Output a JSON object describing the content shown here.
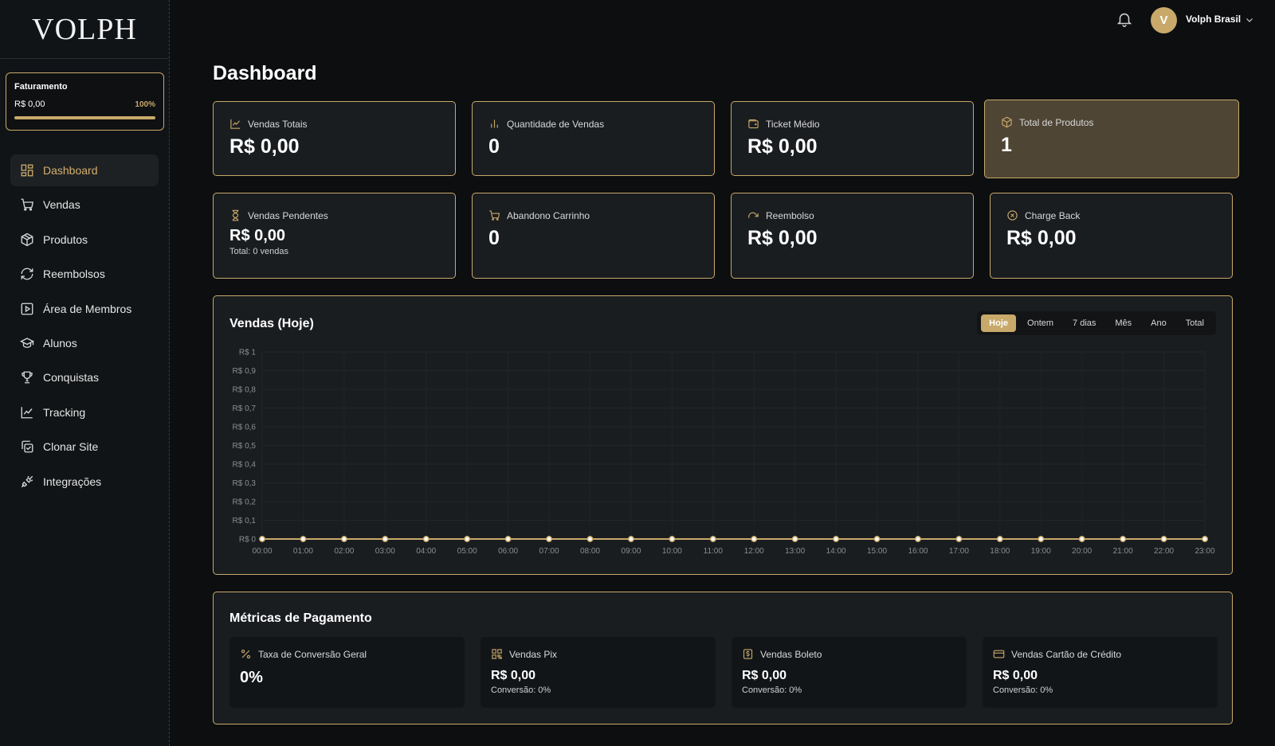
{
  "brand": {
    "logo": "VOLPH"
  },
  "billing": {
    "title": "Faturamento",
    "value": "R$ 0,00",
    "percent_label": "100%",
    "progress": 1.0
  },
  "sidebar": {
    "items": [
      {
        "label": "Dashboard",
        "icon": "dashboard-icon",
        "active": true
      },
      {
        "label": "Vendas",
        "icon": "cart-icon"
      },
      {
        "label": "Produtos",
        "icon": "box-icon"
      },
      {
        "label": "Reembolsos",
        "icon": "refresh-icon"
      },
      {
        "label": "Área de Membros",
        "icon": "play-square-icon"
      },
      {
        "label": "Alunos",
        "icon": "graduation-cap-icon"
      },
      {
        "label": "Conquistas",
        "icon": "trophy-icon"
      },
      {
        "label": "Tracking",
        "icon": "line-chart-icon"
      },
      {
        "label": "Clonar Site",
        "icon": "copy-check-icon"
      },
      {
        "label": "Integrações",
        "icon": "plug-icon"
      }
    ]
  },
  "header": {
    "avatar_letter": "V",
    "username": "Volph Brasil"
  },
  "page": {
    "title": "Dashboard"
  },
  "stats": {
    "vendas_totais": {
      "label": "Vendas Totais",
      "value": "R$ 0,00"
    },
    "quantidade_vendas": {
      "label": "Quantidade de Vendas",
      "value": "0"
    },
    "ticket_medio": {
      "label": "Ticket Médio",
      "value": "R$ 0,00"
    },
    "total_produtos": {
      "label": "Total de Produtos",
      "value": "1"
    },
    "vendas_pendentes": {
      "label": "Vendas Pendentes",
      "value": "R$ 0,00",
      "sub": "Total: 0 vendas"
    },
    "abandono_carrinho": {
      "label": "Abandono Carrinho",
      "value": "0"
    },
    "reembolso": {
      "label": "Reembolso",
      "value": "R$ 0,00"
    },
    "charge_back": {
      "label": "Charge Back",
      "value": "R$ 0,00"
    }
  },
  "sales_chart": {
    "title": "Vendas (Hoje)",
    "tabs": [
      "Hoje",
      "Ontem",
      "7 dias",
      "Mês",
      "Ano",
      "Total"
    ],
    "active_tab": "Hoje"
  },
  "chart_data": {
    "type": "line",
    "title": "Vendas (Hoje)",
    "x": [
      "00:00",
      "01:00",
      "02:00",
      "03:00",
      "04:00",
      "05:00",
      "06:00",
      "07:00",
      "08:00",
      "09:00",
      "10:00",
      "11:00",
      "12:00",
      "13:00",
      "14:00",
      "15:00",
      "16:00",
      "17:00",
      "18:00",
      "19:00",
      "20:00",
      "21:00",
      "22:00",
      "23:00"
    ],
    "values": [
      0,
      0,
      0,
      0,
      0,
      0,
      0,
      0,
      0,
      0,
      0,
      0,
      0,
      0,
      0,
      0,
      0,
      0,
      0,
      0,
      0,
      0,
      0,
      0
    ],
    "y_ticks": [
      "R$ 0",
      "R$ 0,1",
      "R$ 0,2",
      "R$ 0,3",
      "R$ 0,4",
      "R$ 0,5",
      "R$ 0,6",
      "R$ 0,7",
      "R$ 0,8",
      "R$ 0,9",
      "R$ 1"
    ],
    "ylim": [
      0,
      1
    ],
    "grid": true,
    "color": "#c8a96a"
  },
  "payment": {
    "title": "Métricas de Pagamento",
    "conversao": {
      "label": "Taxa de Conversão Geral",
      "value": "0%"
    },
    "pix": {
      "label": "Vendas Pix",
      "value": "R$ 0,00",
      "sub": "Conversão: 0%"
    },
    "boleto": {
      "label": "Vendas Boleto",
      "value": "R$ 0,00",
      "sub": "Conversão: 0%"
    },
    "cartao": {
      "label": "Vendas Cartão de Crédito",
      "value": "R$ 0,00",
      "sub": "Conversão: 0%"
    }
  },
  "colors": {
    "accent": "#c8a96a",
    "background": "#0c0e10",
    "card": "#1a1d20"
  }
}
